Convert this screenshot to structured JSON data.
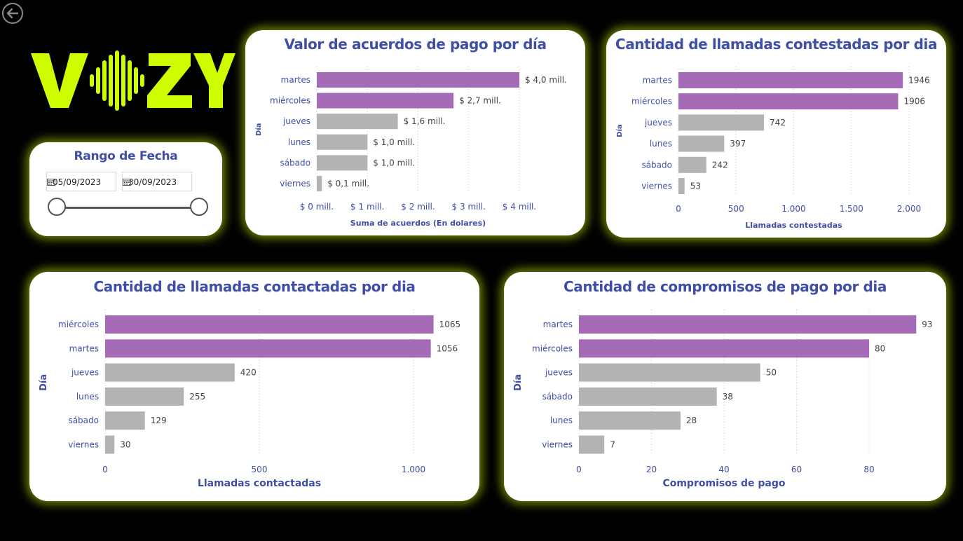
{
  "date_range": {
    "title": "Rango de Fecha",
    "start": "05/09/2023",
    "end": "30/09/2023"
  },
  "colors": {
    "highlight": "#a66bb7",
    "default": "#b3b3b3",
    "title": "#3f4ea6",
    "glow": "#cdfd00"
  },
  "icons": {
    "back": "back-arrow-icon",
    "calendar": "calendar-icon"
  },
  "chart_data": [
    {
      "id": "chart1",
      "type": "bar",
      "orientation": "horizontal",
      "title": "Valor de acuerdos de pago por día",
      "xlabel": "Suma de acuerdos (En dolares)",
      "ylabel": "Día",
      "categories": [
        "martes",
        "miércoles",
        "jueves",
        "lunes",
        "sábado",
        "viernes"
      ],
      "values": [
        4.0,
        2.7,
        1.6,
        1.0,
        1.0,
        0.1
      ],
      "value_labels": [
        "$ 4,0 mill.",
        "$ 2,7 mill.",
        "$ 1,6 mill.",
        "$ 1,0 mill.",
        "$ 1,0 mill.",
        "$ 0,1 mill."
      ],
      "highlighted": [
        true,
        true,
        false,
        false,
        false,
        false
      ],
      "xlim": [
        0,
        4
      ],
      "ticks": [
        0,
        1,
        2,
        3,
        4
      ],
      "tick_labels": [
        "$ 0 mill.",
        "$ 1 mill.",
        "$ 2 mill.",
        "$ 3 mill.",
        "$ 4 mill."
      ],
      "grid": true
    },
    {
      "id": "chart2",
      "type": "bar",
      "orientation": "horizontal",
      "title": "Cantidad de llamadas contestadas por dia",
      "xlabel": "Llamadas contestadas",
      "ylabel": "Día",
      "categories": [
        "martes",
        "miércoles",
        "jueves",
        "lunes",
        "sábado",
        "viernes"
      ],
      "values": [
        1946,
        1906,
        742,
        397,
        242,
        53
      ],
      "value_labels": [
        "1946",
        "1906",
        "742",
        "397",
        "242",
        "53"
      ],
      "highlighted": [
        true,
        true,
        false,
        false,
        false,
        false
      ],
      "xlim": [
        0,
        2000
      ],
      "ticks": [
        0,
        500,
        1000,
        1500,
        2000
      ],
      "tick_labels": [
        "0",
        "500",
        "1.000",
        "1.500",
        "2.000"
      ],
      "grid": true
    },
    {
      "id": "chart3",
      "type": "bar",
      "orientation": "horizontal",
      "title": "Cantidad de llamadas contactadas por dia",
      "xlabel": "Llamadas contactadas",
      "ylabel": "Día",
      "categories": [
        "miércoles",
        "martes",
        "jueves",
        "lunes",
        "sábado",
        "viernes"
      ],
      "values": [
        1065,
        1056,
        420,
        255,
        129,
        30
      ],
      "value_labels": [
        "1065",
        "1056",
        "420",
        "255",
        "129",
        "30"
      ],
      "highlighted": [
        true,
        true,
        false,
        false,
        false,
        false
      ],
      "xlim": [
        0,
        1000
      ],
      "ticks": [
        0,
        500,
        1000
      ],
      "tick_labels": [
        "0",
        "500",
        "1.000"
      ],
      "grid": true
    },
    {
      "id": "chart4",
      "type": "bar",
      "orientation": "horizontal",
      "title": "Cantidad de compromisos de pago por dia",
      "xlabel": "Compromisos de pago",
      "ylabel": "Día",
      "categories": [
        "martes",
        "miércoles",
        "jueves",
        "sábado",
        "lunes",
        "viernes"
      ],
      "values": [
        93,
        80,
        50,
        38,
        28,
        7
      ],
      "value_labels": [
        "93",
        "80",
        "50",
        "38",
        "28",
        "7"
      ],
      "highlighted": [
        true,
        true,
        false,
        false,
        false,
        false
      ],
      "xlim": [
        0,
        80
      ],
      "ticks": [
        0,
        20,
        40,
        60,
        80
      ],
      "tick_labels": [
        "0",
        "20",
        "40",
        "60",
        "80"
      ],
      "grid": true
    }
  ]
}
